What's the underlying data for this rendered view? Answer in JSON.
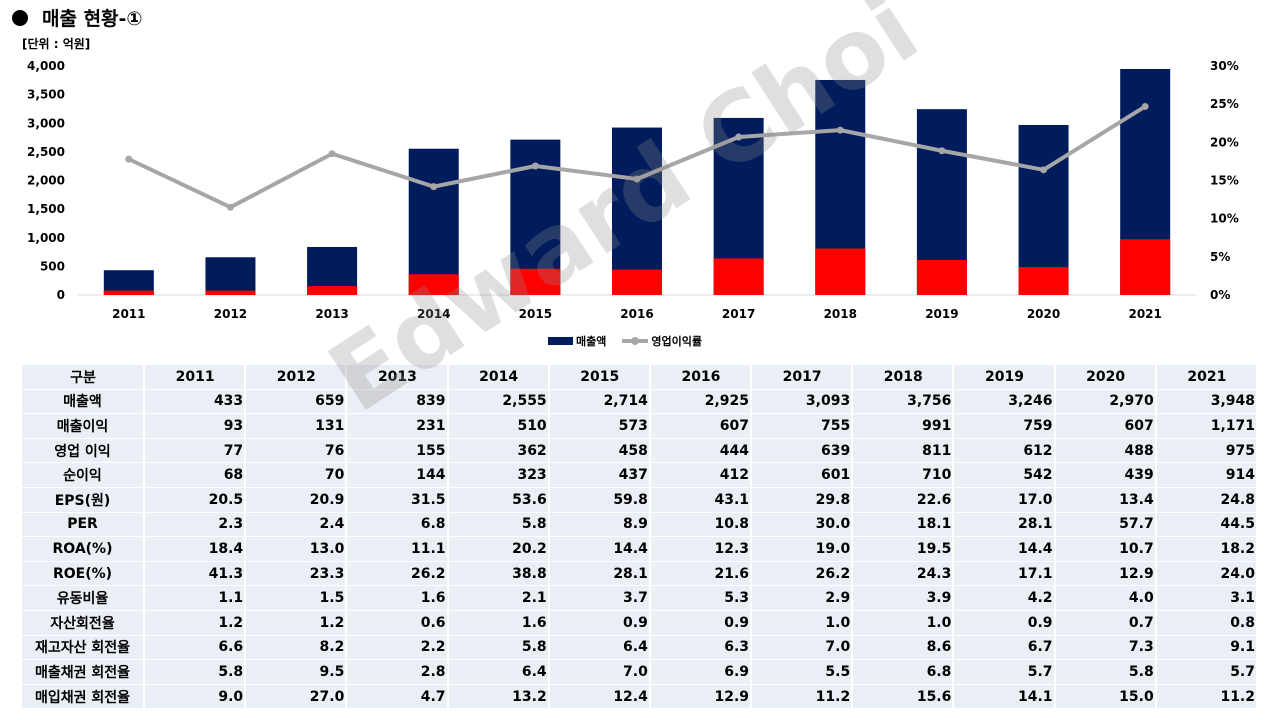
{
  "header": {
    "title": "매출 현황-①",
    "unit": "[단위 : 억원]"
  },
  "watermark": "Edward Choi",
  "chart_data": {
    "type": "bar",
    "categories": [
      "2011",
      "2012",
      "2013",
      "2014",
      "2015",
      "2016",
      "2017",
      "2018",
      "2019",
      "2020",
      "2021"
    ],
    "series": [
      {
        "name": "매출액",
        "kind": "bar",
        "axis": "left",
        "color": "#001c5c",
        "values": [
          433,
          659,
          839,
          2555,
          2714,
          2925,
          3093,
          3756,
          3246,
          2970,
          3948
        ]
      },
      {
        "name": "영업 이익",
        "kind": "bar-overlay",
        "axis": "left",
        "color": "#ff0000",
        "values": [
          77,
          76,
          155,
          362,
          458,
          444,
          639,
          811,
          612,
          488,
          975
        ]
      },
      {
        "name": "영업이익률",
        "kind": "line",
        "axis": "right",
        "color": "#a6a6a6",
        "values": [
          17.8,
          11.5,
          18.5,
          14.2,
          16.9,
          15.2,
          20.7,
          21.6,
          18.9,
          16.4,
          24.7
        ]
      }
    ],
    "y_left": {
      "min": 0,
      "max": 4000,
      "ticks": [
        "0",
        "500",
        "1,000",
        "1,500",
        "2,000",
        "2,500",
        "3,000",
        "3,500",
        "4,000"
      ]
    },
    "y_right": {
      "min": 0,
      "max": 30,
      "ticks": [
        "0%",
        "5%",
        "10%",
        "15%",
        "20%",
        "25%",
        "30%"
      ]
    },
    "legend": {
      "position": "bottom",
      "items": [
        {
          "label": "매출액"
        },
        {
          "label": "영업이익률"
        }
      ]
    }
  },
  "table": {
    "header": [
      "구분",
      "2011",
      "2012",
      "2013",
      "2014",
      "2015",
      "2016",
      "2017",
      "2018",
      "2019",
      "2020",
      "2021"
    ],
    "rows": [
      [
        "매출액",
        "433",
        "659",
        "839",
        "2,555",
        "2,714",
        "2,925",
        "3,093",
        "3,756",
        "3,246",
        "2,970",
        "3,948"
      ],
      [
        "매출이익",
        "93",
        "131",
        "231",
        "510",
        "573",
        "607",
        "755",
        "991",
        "759",
        "607",
        "1,171"
      ],
      [
        "영업 이익",
        "77",
        "76",
        "155",
        "362",
        "458",
        "444",
        "639",
        "811",
        "612",
        "488",
        "975"
      ],
      [
        "순이익",
        "68",
        "70",
        "144",
        "323",
        "437",
        "412",
        "601",
        "710",
        "542",
        "439",
        "914"
      ],
      [
        "EPS(원)",
        "20.5",
        "20.9",
        "31.5",
        "53.6",
        "59.8",
        "43.1",
        "29.8",
        "22.6",
        "17.0",
        "13.4",
        "24.8"
      ],
      [
        "PER",
        "2.3",
        "2.4",
        "6.8",
        "5.8",
        "8.9",
        "10.8",
        "30.0",
        "18.1",
        "28.1",
        "57.7",
        "44.5"
      ],
      [
        "ROA(%)",
        "18.4",
        "13.0",
        "11.1",
        "20.2",
        "14.4",
        "12.3",
        "19.0",
        "19.5",
        "14.4",
        "10.7",
        "18.2"
      ],
      [
        "ROE(%)",
        "41.3",
        "23.3",
        "26.2",
        "38.8",
        "28.1",
        "21.6",
        "26.2",
        "24.3",
        "17.1",
        "12.9",
        "24.0"
      ],
      [
        "유동비율",
        "1.1",
        "1.5",
        "1.6",
        "2.1",
        "3.7",
        "5.3",
        "2.9",
        "3.9",
        "4.2",
        "4.0",
        "3.1"
      ],
      [
        "자산회전율",
        "1.2",
        "1.2",
        "0.6",
        "1.6",
        "0.9",
        "0.9",
        "1.0",
        "1.0",
        "0.9",
        "0.7",
        "0.8"
      ],
      [
        "재고자산 회전율",
        "6.6",
        "8.2",
        "2.2",
        "5.8",
        "6.4",
        "6.3",
        "7.0",
        "8.6",
        "6.7",
        "7.3",
        "9.1"
      ],
      [
        "매출채권 회전율",
        "5.8",
        "9.5",
        "2.8",
        "6.4",
        "7.0",
        "6.9",
        "5.5",
        "6.8",
        "5.7",
        "5.8",
        "5.7"
      ],
      [
        "매입채권 회전율",
        "9.0",
        "27.0",
        "4.7",
        "13.2",
        "12.4",
        "12.9",
        "11.2",
        "15.6",
        "14.1",
        "15.0",
        "11.2"
      ]
    ]
  }
}
